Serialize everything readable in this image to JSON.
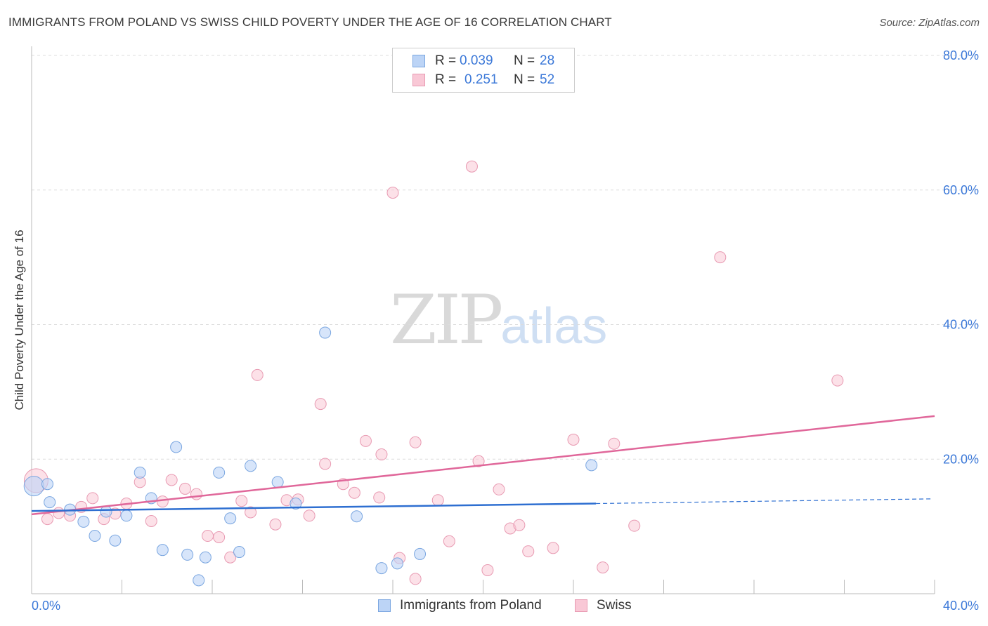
{
  "header": {
    "title": "IMMIGRANTS FROM POLAND VS SWISS CHILD POVERTY UNDER THE AGE OF 16 CORRELATION CHART",
    "source": "Source: ZipAtlas.com"
  },
  "watermark": {
    "zip": "ZIP",
    "atlas": "atlas"
  },
  "legend": {
    "rows": [
      {
        "r_label": "R =",
        "r_value": "0.039",
        "n_label": "N =",
        "n_value": "28"
      },
      {
        "r_label": "R =",
        "r_value": "0.251",
        "n_label": "N =",
        "n_value": "52"
      }
    ]
  },
  "bottom_legend": {
    "poland": "Immigrants from Poland",
    "swiss": "Swiss"
  },
  "colors": {
    "poland_fill": "#bcd4f6",
    "poland_stroke": "#7aa6e0",
    "poland_line": "#2e6fd1",
    "swiss_fill": "#f9c8d6",
    "swiss_stroke": "#e89ab2",
    "swiss_line": "#e0679a",
    "tick_text": "#3b78d8",
    "grid": "#dcdcdc"
  },
  "chart_data": {
    "type": "scatter",
    "title": "IMMIGRANTS FROM POLAND VS SWISS CHILD POVERTY UNDER THE AGE OF 16 CORRELATION CHART",
    "xlabel": "",
    "ylabel": "Child Poverty Under the Age of 16",
    "xlim": [
      0,
      40
    ],
    "ylim": [
      0,
      80
    ],
    "x_tick_labels": [
      "0.0%",
      "40.0%"
    ],
    "y_ticks": [
      20,
      40,
      60,
      80
    ],
    "y_tick_labels": [
      "20.0%",
      "40.0%",
      "60.0%",
      "80.0%"
    ],
    "grid": true,
    "legend_position": "top-center",
    "series": [
      {
        "name": "Immigrants from Poland",
        "R": 0.039,
        "N": 28,
        "trend": {
          "x": [
            0,
            25
          ],
          "y": [
            12.3,
            13.4
          ],
          "dashed_to": [
            40,
            14.1
          ]
        },
        "points": [
          [
            0.1,
            16.0
          ],
          [
            0.7,
            16.3
          ],
          [
            0.8,
            13.6
          ],
          [
            1.7,
            12.5
          ],
          [
            2.3,
            10.7
          ],
          [
            2.8,
            8.6
          ],
          [
            3.3,
            12.2
          ],
          [
            3.7,
            7.9
          ],
          [
            4.2,
            11.6
          ],
          [
            4.8,
            18.0
          ],
          [
            5.3,
            14.2
          ],
          [
            5.8,
            6.5
          ],
          [
            6.4,
            21.8
          ],
          [
            6.9,
            5.8
          ],
          [
            7.4,
            2.0
          ],
          [
            7.7,
            5.4
          ],
          [
            8.3,
            18.0
          ],
          [
            8.8,
            11.2
          ],
          [
            9.2,
            6.2
          ],
          [
            9.7,
            19.0
          ],
          [
            10.9,
            16.6
          ],
          [
            11.7,
            13.4
          ],
          [
            13.0,
            38.8
          ],
          [
            14.4,
            11.5
          ],
          [
            15.5,
            3.8
          ],
          [
            16.2,
            4.5
          ],
          [
            17.2,
            5.9
          ],
          [
            24.8,
            19.1
          ]
        ]
      },
      {
        "name": "Swiss",
        "R": 0.251,
        "N": 52,
        "trend": {
          "x": [
            0,
            40
          ],
          "y": [
            11.8,
            26.4
          ]
        },
        "points": [
          [
            0.2,
            16.8
          ],
          [
            0.7,
            11.1
          ],
          [
            1.2,
            12.0
          ],
          [
            1.7,
            11.6
          ],
          [
            2.2,
            12.9
          ],
          [
            2.7,
            14.2
          ],
          [
            3.2,
            11.1
          ],
          [
            3.7,
            11.9
          ],
          [
            4.2,
            13.4
          ],
          [
            4.8,
            16.6
          ],
          [
            5.3,
            10.8
          ],
          [
            5.8,
            13.7
          ],
          [
            6.2,
            16.9
          ],
          [
            6.8,
            15.6
          ],
          [
            7.3,
            14.8
          ],
          [
            7.8,
            8.6
          ],
          [
            8.3,
            8.4
          ],
          [
            8.8,
            5.4
          ],
          [
            9.3,
            13.8
          ],
          [
            9.7,
            12.1
          ],
          [
            10.0,
            32.5
          ],
          [
            10.8,
            10.3
          ],
          [
            11.3,
            13.9
          ],
          [
            11.8,
            14.0
          ],
          [
            12.3,
            11.6
          ],
          [
            12.8,
            28.2
          ],
          [
            13.0,
            19.3
          ],
          [
            13.8,
            16.3
          ],
          [
            14.3,
            15.0
          ],
          [
            14.8,
            22.7
          ],
          [
            15.5,
            20.7
          ],
          [
            15.4,
            14.3
          ],
          [
            16.0,
            59.6
          ],
          [
            16.3,
            5.3
          ],
          [
            17.0,
            22.5
          ],
          [
            17.0,
            2.2
          ],
          [
            18.0,
            13.9
          ],
          [
            18.5,
            7.8
          ],
          [
            19.5,
            63.5
          ],
          [
            19.8,
            19.7
          ],
          [
            20.2,
            3.5
          ],
          [
            20.7,
            15.5
          ],
          [
            21.2,
            9.7
          ],
          [
            21.6,
            10.2
          ],
          [
            22.0,
            6.3
          ],
          [
            23.1,
            6.8
          ],
          [
            24.0,
            22.9
          ],
          [
            25.3,
            3.9
          ],
          [
            25.8,
            22.3
          ],
          [
            26.7,
            10.1
          ],
          [
            30.5,
            50.0
          ],
          [
            35.7,
            31.7
          ]
        ]
      }
    ]
  }
}
